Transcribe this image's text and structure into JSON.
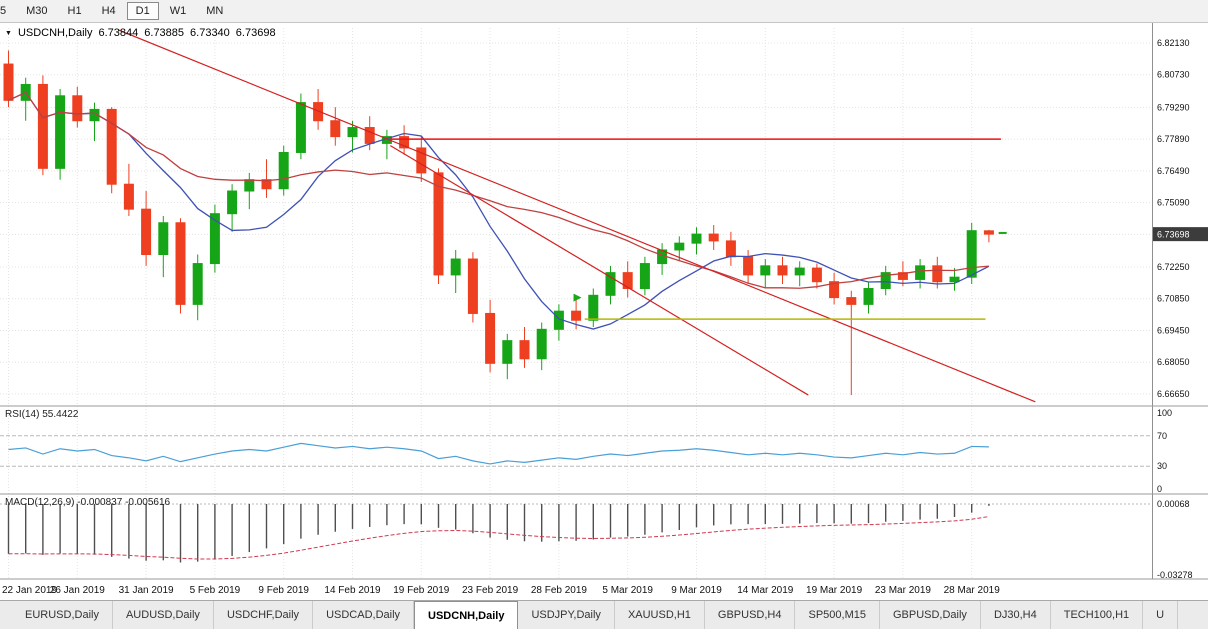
{
  "toolbar": {
    "timeframes": [
      {
        "label": "5",
        "active": false
      },
      {
        "label": "M30",
        "active": false
      },
      {
        "label": "H1",
        "active": false
      },
      {
        "label": "H4",
        "active": false
      },
      {
        "label": "D1",
        "active": true
      },
      {
        "label": "W1",
        "active": false
      },
      {
        "label": "MN",
        "active": false
      }
    ]
  },
  "chart_header": {
    "symbol": "USDCNH,Daily",
    "open": "6.73844",
    "high": "6.73885",
    "low": "6.73340",
    "close": "6.73698"
  },
  "price_axis": {
    "labels": [
      "6.82130",
      "6.80730",
      "6.79290",
      "6.77890",
      "6.76490",
      "6.75090",
      "6.73690",
      "6.72250",
      "6.70850",
      "6.69450",
      "6.68050",
      "6.66650"
    ],
    "current_price": "6.73698"
  },
  "rsi_panel": {
    "label": "RSI(14) 55.4422",
    "axis_labels": [
      "100",
      "70",
      "30",
      "0"
    ]
  },
  "macd_panel": {
    "label": "MACD(12,26,9) -0.000837 -0.005616",
    "axis_top": "0.00068",
    "axis_bottom": "-0.03278"
  },
  "date_axis": [
    "22 Jan 2019",
    "26 Jan 2019",
    "31 Jan 2019",
    "5 Feb 2019",
    "9 Feb 2019",
    "14 Feb 2019",
    "19 Feb 2019",
    "23 Feb 2019",
    "28 Feb 2019",
    "5 Mar 2019",
    "9 Mar 2019",
    "14 Mar 2019",
    "19 Mar 2019",
    "23 Mar 2019",
    "28 Mar 2019"
  ],
  "tabs": {
    "items": [
      "EURUSD,Daily",
      "AUDUSD,Daily",
      "USDCHF,Daily",
      "USDCAD,Daily",
      "USDCNH,Daily",
      "USDJPY,Daily",
      "XAUUSD,H1",
      "GBPUSD,H4",
      "SP500,M15",
      "GBPUSD,Daily",
      "DJ30,H4",
      "TECH100,H1",
      "U"
    ],
    "active_index": 4
  },
  "colors": {
    "bull": "#16a516",
    "bear": "#ee3f20",
    "trendline": "#d42020",
    "rsi_line": "#4a9fd8",
    "macd_hist": "#4f4f4f",
    "macd_signal": "#cf3a50",
    "grid": "#e4e4e4",
    "badge_bg": "#3c3c3c"
  },
  "chart_data": {
    "type": "candlestick",
    "symbol": "USDCNH",
    "timeframe": "Daily",
    "price_range": {
      "max": 6.8279,
      "min": 6.6625
    },
    "price_axis_values": [
      6.8213,
      6.8073,
      6.7929,
      6.7789,
      6.7649,
      6.7509,
      6.7369,
      6.7225,
      6.7085,
      6.6945,
      6.6805,
      6.6665
    ],
    "label_indices": [
      0,
      4,
      8,
      12,
      16,
      20,
      24,
      28,
      32,
      36,
      40,
      44,
      48,
      52,
      56
    ],
    "candles": [
      [
        6.812,
        6.818,
        6.793,
        6.796
      ],
      [
        6.796,
        6.806,
        6.787,
        6.803
      ],
      [
        6.803,
        6.807,
        6.763,
        6.766
      ],
      [
        6.766,
        6.801,
        6.761,
        6.798
      ],
      [
        6.798,
        6.802,
        6.784,
        6.787
      ],
      [
        6.787,
        6.795,
        6.778,
        6.792
      ],
      [
        6.792,
        6.793,
        6.755,
        6.759
      ],
      [
        6.759,
        6.768,
        6.745,
        6.748
      ],
      [
        6.748,
        6.756,
        6.723,
        6.728
      ],
      [
        6.728,
        6.745,
        6.718,
        6.742
      ],
      [
        6.742,
        6.744,
        6.702,
        6.706
      ],
      [
        6.706,
        6.728,
        6.699,
        6.724
      ],
      [
        6.724,
        6.75,
        6.72,
        6.746
      ],
      [
        6.746,
        6.759,
        6.738,
        6.756
      ],
      [
        6.756,
        6.764,
        6.748,
        6.761
      ],
      [
        6.761,
        6.77,
        6.753,
        6.757
      ],
      [
        6.757,
        6.776,
        6.754,
        6.773
      ],
      [
        6.773,
        6.799,
        6.77,
        6.795
      ],
      [
        6.795,
        6.801,
        6.783,
        6.787
      ],
      [
        6.787,
        6.793,
        6.776,
        6.78
      ],
      [
        6.78,
        6.787,
        6.773,
        6.784
      ],
      [
        6.784,
        6.789,
        6.774,
        6.777
      ],
      [
        6.777,
        6.783,
        6.77,
        6.78
      ],
      [
        6.78,
        6.785,
        6.772,
        6.775
      ],
      [
        6.775,
        6.78,
        6.76,
        6.764
      ],
      [
        6.764,
        6.766,
        6.715,
        6.719
      ],
      [
        6.719,
        6.73,
        6.711,
        6.726
      ],
      [
        6.726,
        6.729,
        6.698,
        6.702
      ],
      [
        6.702,
        6.708,
        6.676,
        6.68
      ],
      [
        6.68,
        6.693,
        6.673,
        6.69
      ],
      [
        6.69,
        6.696,
        6.678,
        6.682
      ],
      [
        6.682,
        6.698,
        6.677,
        6.695
      ],
      [
        6.695,
        6.706,
        6.69,
        6.703
      ],
      [
        6.703,
        6.709,
        6.695,
        6.699
      ],
      [
        6.699,
        6.713,
        6.696,
        6.71
      ],
      [
        6.71,
        6.723,
        6.706,
        6.72
      ],
      [
        6.72,
        6.725,
        6.709,
        6.713
      ],
      [
        6.713,
        6.727,
        6.71,
        6.724
      ],
      [
        6.724,
        6.733,
        6.719,
        6.73
      ],
      [
        6.73,
        6.736,
        6.725,
        6.733
      ],
      [
        6.733,
        6.74,
        6.728,
        6.737
      ],
      [
        6.737,
        6.741,
        6.73,
        6.734
      ],
      [
        6.734,
        6.738,
        6.723,
        6.727
      ],
      [
        6.727,
        6.73,
        6.715,
        6.719
      ],
      [
        6.719,
        6.726,
        6.713,
        6.723
      ],
      [
        6.723,
        6.727,
        6.715,
        6.719
      ],
      [
        6.719,
        6.725,
        6.714,
        6.722
      ],
      [
        6.722,
        6.724,
        6.713,
        6.716
      ],
      [
        6.716,
        6.72,
        6.706,
        6.709
      ],
      [
        6.709,
        6.712,
        6.666,
        6.706
      ],
      [
        6.706,
        6.716,
        6.702,
        6.713
      ],
      [
        6.713,
        6.723,
        6.71,
        6.72
      ],
      [
        6.72,
        6.725,
        6.714,
        6.717
      ],
      [
        6.717,
        6.726,
        6.713,
        6.723
      ],
      [
        6.723,
        6.727,
        6.713,
        6.716
      ],
      [
        6.716,
        6.722,
        6.712,
        6.718
      ],
      [
        6.718,
        6.742,
        6.715,
        6.7385
      ],
      [
        6.73844,
        6.73885,
        6.7334,
        6.73698
      ]
    ],
    "moving_averages": [
      {
        "name": "ma-fast-line",
        "period": 8,
        "color": "#3f51b5"
      },
      {
        "name": "ma-slow-line",
        "period": 20,
        "color": "#c04040"
      }
    ],
    "rsi": {
      "period": 14,
      "current": 55.4422,
      "values": [
        52,
        54,
        46,
        53,
        50,
        52,
        44,
        41,
        37,
        43,
        36,
        41,
        46,
        50,
        52,
        50,
        55,
        60,
        57,
        54,
        56,
        53,
        55,
        53,
        50,
        40,
        43,
        37,
        33,
        37,
        35,
        38,
        41,
        39,
        43,
        46,
        44,
        47,
        50,
        51,
        53,
        51,
        48,
        45,
        47,
        45,
        47,
        45,
        42,
        41,
        44,
        47,
        45,
        48,
        46,
        47,
        56,
        55.44
      ]
    },
    "macd": {
      "params": "12,26,9",
      "current": -0.000837,
      "signal_current": -0.005616,
      "scale_max": 0.00068,
      "scale_min": -0.03278,
      "values": [
        -0.023,
        -0.0228,
        -0.0235,
        -0.0228,
        -0.023,
        -0.0234,
        -0.0244,
        -0.0252,
        -0.0262,
        -0.026,
        -0.027,
        -0.0266,
        -0.0255,
        -0.024,
        -0.0222,
        -0.0205,
        -0.0185,
        -0.016,
        -0.0142,
        -0.0128,
        -0.0115,
        -0.0106,
        -0.0098,
        -0.0093,
        -0.0094,
        -0.011,
        -0.0118,
        -0.0135,
        -0.0155,
        -0.0165,
        -0.0172,
        -0.0174,
        -0.0172,
        -0.017,
        -0.0164,
        -0.0155,
        -0.015,
        -0.0142,
        -0.0131,
        -0.012,
        -0.0108,
        -0.0099,
        -0.0094,
        -0.0093,
        -0.0093,
        -0.0092,
        -0.009,
        -0.0088,
        -0.0089,
        -0.0091,
        -0.0088,
        -0.0082,
        -0.0078,
        -0.0072,
        -0.0068,
        -0.006,
        -0.004,
        -0.000837
      ]
    },
    "objects": {
      "trendlines": [
        {
          "i1": 6.4,
          "p1": 6.827,
          "i2": 59.7,
          "p2": 6.663
        },
        {
          "i1": 22.2,
          "p1": 6.776,
          "i2": 46.5,
          "p2": 6.666
        }
      ],
      "hlines": [
        {
          "price": 6.7789,
          "i1": 22.2,
          "i2": 57.7,
          "color": "#ee1111",
          "name": "resistance-hline"
        },
        {
          "price": 6.6995,
          "i1": 33.5,
          "i2": 56.8,
          "color": "#b5b800",
          "name": "support-hline"
        }
      ]
    },
    "markers": [
      {
        "i": 33.2,
        "price": 6.709,
        "shape": "arrow-right",
        "color": "#18a818"
      },
      {
        "i": 57.8,
        "price": 6.7375,
        "shape": "tick",
        "color": "#18a818"
      }
    ]
  }
}
